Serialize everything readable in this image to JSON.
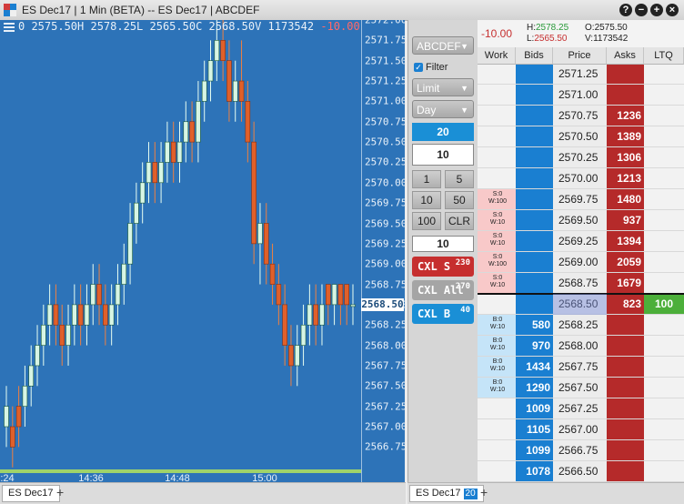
{
  "window": {
    "title": "ES Dec17 | 1 Min (BETA) -- ES Dec17 | ABCDEF",
    "buttons": [
      "?",
      "−",
      "+",
      "×"
    ]
  },
  "chart": {
    "ohlc_text": "0 2575.50H 2578.25L 2565.50C 2568.50V 1173542",
    "change_text": "-10.00",
    "last_price_label": "2568.50",
    "y_ticks": [
      "2572.00",
      "2571.75",
      "2571.50",
      "2571.25",
      "2571.00",
      "2570.75",
      "2570.50",
      "2570.25",
      "2570.00",
      "2569.75",
      "2569.50",
      "2569.25",
      "2569.00",
      "2568.75",
      "2568.50",
      "2568.25",
      "2568.00",
      "2567.75",
      "2567.50",
      "2567.25",
      "2567.00",
      "2566.75"
    ],
    "x_ticks": [
      ":24",
      "14:36",
      "14:48",
      "15:00"
    ]
  },
  "chart_data": {
    "type": "candlestick",
    "ylim": [
      2566.5,
      2572.25
    ],
    "xlabel": "",
    "ylabel": "",
    "candles": [
      {
        "o": 2567.0,
        "h": 2567.5,
        "l": 2566.75,
        "c": 2567.25
      },
      {
        "o": 2567.0,
        "h": 2567.25,
        "l": 2566.5,
        "c": 2566.75
      },
      {
        "o": 2567.25,
        "h": 2567.5,
        "l": 2566.75,
        "c": 2567.0
      },
      {
        "o": 2567.25,
        "h": 2567.75,
        "l": 2567.0,
        "c": 2567.5
      },
      {
        "o": 2567.5,
        "h": 2568.0,
        "l": 2567.25,
        "c": 2567.75
      },
      {
        "o": 2567.75,
        "h": 2568.25,
        "l": 2567.5,
        "c": 2568.0
      },
      {
        "o": 2568.0,
        "h": 2568.5,
        "l": 2567.75,
        "c": 2568.25
      },
      {
        "o": 2568.25,
        "h": 2568.75,
        "l": 2568.0,
        "c": 2568.5
      },
      {
        "o": 2568.5,
        "h": 2568.75,
        "l": 2568.0,
        "c": 2568.25
      },
      {
        "o": 2568.25,
        "h": 2568.5,
        "l": 2567.75,
        "c": 2568.0
      },
      {
        "o": 2568.0,
        "h": 2568.5,
        "l": 2567.75,
        "c": 2568.25
      },
      {
        "o": 2568.25,
        "h": 2568.75,
        "l": 2568.0,
        "c": 2568.5
      },
      {
        "o": 2568.5,
        "h": 2568.75,
        "l": 2568.0,
        "c": 2568.25
      },
      {
        "o": 2568.25,
        "h": 2568.75,
        "l": 2568.0,
        "c": 2568.5
      },
      {
        "o": 2568.5,
        "h": 2569.0,
        "l": 2568.25,
        "c": 2568.75
      },
      {
        "o": 2568.75,
        "h": 2569.0,
        "l": 2568.25,
        "c": 2568.5
      },
      {
        "o": 2568.5,
        "h": 2568.75,
        "l": 2568.0,
        "c": 2568.25
      },
      {
        "o": 2568.25,
        "h": 2568.75,
        "l": 2568.0,
        "c": 2568.5
      },
      {
        "o": 2568.5,
        "h": 2569.0,
        "l": 2568.25,
        "c": 2568.75
      },
      {
        "o": 2568.75,
        "h": 2569.25,
        "l": 2568.5,
        "c": 2569.0
      },
      {
        "o": 2569.0,
        "h": 2569.75,
        "l": 2568.75,
        "c": 2569.5
      },
      {
        "o": 2569.5,
        "h": 2570.0,
        "l": 2569.25,
        "c": 2569.75
      },
      {
        "o": 2569.75,
        "h": 2570.25,
        "l": 2569.5,
        "c": 2570.0
      },
      {
        "o": 2570.0,
        "h": 2570.5,
        "l": 2569.75,
        "c": 2570.25
      },
      {
        "o": 2570.25,
        "h": 2570.5,
        "l": 2569.75,
        "c": 2570.0
      },
      {
        "o": 2570.0,
        "h": 2570.5,
        "l": 2569.75,
        "c": 2570.25
      },
      {
        "o": 2570.25,
        "h": 2570.75,
        "l": 2570.0,
        "c": 2570.5
      },
      {
        "o": 2570.5,
        "h": 2570.75,
        "l": 2570.0,
        "c": 2570.25
      },
      {
        "o": 2570.25,
        "h": 2570.75,
        "l": 2570.0,
        "c": 2570.5
      },
      {
        "o": 2570.5,
        "h": 2571.0,
        "l": 2570.25,
        "c": 2570.75
      },
      {
        "o": 2570.75,
        "h": 2571.0,
        "l": 2570.25,
        "c": 2570.5
      },
      {
        "o": 2570.5,
        "h": 2571.25,
        "l": 2570.25,
        "c": 2571.0
      },
      {
        "o": 2571.0,
        "h": 2571.5,
        "l": 2570.75,
        "c": 2571.25
      },
      {
        "o": 2571.25,
        "h": 2571.75,
        "l": 2571.0,
        "c": 2571.5
      },
      {
        "o": 2571.5,
        "h": 2572.0,
        "l": 2571.25,
        "c": 2571.75
      },
      {
        "o": 2571.75,
        "h": 2572.0,
        "l": 2571.25,
        "c": 2571.5
      },
      {
        "o": 2571.5,
        "h": 2571.75,
        "l": 2570.75,
        "c": 2571.0
      },
      {
        "o": 2571.0,
        "h": 2571.5,
        "l": 2570.75,
        "c": 2571.25
      },
      {
        "o": 2571.25,
        "h": 2571.75,
        "l": 2570.75,
        "c": 2571.0
      },
      {
        "o": 2571.0,
        "h": 2571.25,
        "l": 2570.25,
        "c": 2570.5
      },
      {
        "o": 2570.5,
        "h": 2570.75,
        "l": 2569.0,
        "c": 2569.25
      },
      {
        "o": 2569.25,
        "h": 2569.75,
        "l": 2568.75,
        "c": 2569.5
      },
      {
        "o": 2569.5,
        "h": 2569.75,
        "l": 2568.75,
        "c": 2569.0
      },
      {
        "o": 2569.0,
        "h": 2569.25,
        "l": 2568.5,
        "c": 2568.75
      },
      {
        "o": 2568.75,
        "h": 2569.0,
        "l": 2568.25,
        "c": 2568.5
      },
      {
        "o": 2568.5,
        "h": 2568.75,
        "l": 2567.75,
        "c": 2568.0
      },
      {
        "o": 2568.0,
        "h": 2568.25,
        "l": 2567.5,
        "c": 2567.75
      },
      {
        "o": 2567.75,
        "h": 2568.25,
        "l": 2567.5,
        "c": 2568.0
      },
      {
        "o": 2568.0,
        "h": 2568.5,
        "l": 2567.75,
        "c": 2568.25
      },
      {
        "o": 2568.25,
        "h": 2568.75,
        "l": 2568.0,
        "c": 2568.5
      },
      {
        "o": 2568.5,
        "h": 2568.75,
        "l": 2568.0,
        "c": 2568.25
      },
      {
        "o": 2568.25,
        "h": 2568.75,
        "l": 2568.0,
        "c": 2568.5
      },
      {
        "o": 2568.75,
        "h": 2568.75,
        "l": 2568.25,
        "c": 2568.5
      },
      {
        "o": 2568.5,
        "h": 2568.75,
        "l": 2568.25,
        "c": 2568.75
      },
      {
        "o": 2568.75,
        "h": 2568.75,
        "l": 2568.25,
        "c": 2568.5
      },
      {
        "o": 2568.75,
        "h": 2568.75,
        "l": 2568.25,
        "c": 2568.5
      },
      {
        "o": 2568.5,
        "h": 2568.75,
        "l": 2568.25,
        "c": 2568.5
      }
    ]
  },
  "tabs": {
    "left_tab": "ES Dec17",
    "right_tab": "ES Dec17",
    "right_tab_count": "20",
    "add": "+"
  },
  "order_panel": {
    "account": "ABCDEF",
    "filter_label": "Filter",
    "order_type": "Limit",
    "tif": "Day",
    "qty_selected": "20",
    "qty_value": "10",
    "qty_buttons": [
      "1",
      "5",
      "10",
      "50",
      "100",
      "CLR"
    ],
    "qty_value2": "10",
    "cxl_s": {
      "label": "CXL S",
      "count": "230"
    },
    "cxl_all": {
      "label": "CXL All",
      "count": "270"
    },
    "cxl_b": {
      "label": "CXL B",
      "count": "40"
    }
  },
  "dom": {
    "net_change": "-10.00",
    "high_label": "H:",
    "high": "2578.25",
    "low_label": "L:",
    "low": "2565.50",
    "open_label": "O:",
    "open": "2575.50",
    "vol_label": "V:",
    "volume": "1173542",
    "columns": [
      "Work",
      "Bids",
      "Price",
      "Asks",
      "LTQ"
    ],
    "rows": [
      {
        "work": "",
        "bid": "",
        "price": "2571.25",
        "ask": "",
        "ltq": ""
      },
      {
        "work": "",
        "bid": "",
        "price": "2571.00",
        "ask": "",
        "ltq": ""
      },
      {
        "work": "",
        "bid": "",
        "price": "2570.75",
        "ask": "1236",
        "ltq": ""
      },
      {
        "work": "",
        "bid": "",
        "price": "2570.50",
        "ask": "1389",
        "ltq": ""
      },
      {
        "work": "",
        "bid": "",
        "price": "2570.25",
        "ask": "1306",
        "ltq": ""
      },
      {
        "work": "",
        "bid": "",
        "price": "2570.00",
        "ask": "1213",
        "ltq": ""
      },
      {
        "work": "S:0\nW:100",
        "bid": "",
        "price": "2569.75",
        "ask": "1480",
        "ltq": ""
      },
      {
        "work": "S:0\nW:10",
        "bid": "",
        "price": "2569.50",
        "ask": "937",
        "ltq": ""
      },
      {
        "work": "S:0\nW:10",
        "bid": "",
        "price": "2569.25",
        "ask": "1394",
        "ltq": ""
      },
      {
        "work": "S:0\nW:100",
        "bid": "",
        "price": "2569.00",
        "ask": "2059",
        "ltq": ""
      },
      {
        "work": "S:0\nW:10",
        "bid": "",
        "price": "2568.75",
        "ask": "1679",
        "ltq": ""
      },
      {
        "work": "",
        "bid": "",
        "price": "2568.50",
        "ask": "823",
        "ltq": "100"
      },
      {
        "work": "B:0\nW:10",
        "bid": "580",
        "price": "2568.25",
        "ask": "",
        "ltq": ""
      },
      {
        "work": "B:0\nW:10",
        "bid": "970",
        "price": "2568.00",
        "ask": "",
        "ltq": ""
      },
      {
        "work": "B:0\nW:10",
        "bid": "1434",
        "price": "2567.75",
        "ask": "",
        "ltq": ""
      },
      {
        "work": "B:0\nW:10",
        "bid": "1290",
        "price": "2567.50",
        "ask": "",
        "ltq": ""
      },
      {
        "work": "",
        "bid": "1009",
        "price": "2567.25",
        "ask": "",
        "ltq": ""
      },
      {
        "work": "",
        "bid": "1105",
        "price": "2567.00",
        "ask": "",
        "ltq": ""
      },
      {
        "work": "",
        "bid": "1099",
        "price": "2566.75",
        "ask": "",
        "ltq": ""
      },
      {
        "work": "",
        "bid": "1078",
        "price": "2566.50",
        "ask": "",
        "ltq": ""
      }
    ]
  },
  "colors": {
    "chart_bg": "#2d73b8",
    "up": "#d7f5e4",
    "down": "#e0602a",
    "ask_bg": "#b52a2a",
    "bid_bg": "#1a7fd1",
    "ltq_bg": "#4caf3a"
  }
}
